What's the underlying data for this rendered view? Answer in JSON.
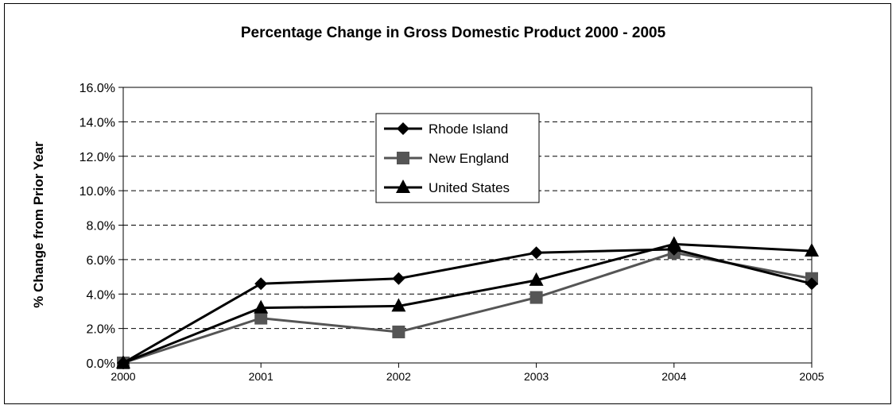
{
  "chart_data": {
    "type": "line",
    "title": "Percentage Change in Gross Domestic Product 2000 - 2005",
    "xlabel": "",
    "ylabel": "% Change from Prior Year",
    "categories": [
      "2000",
      "2001",
      "2002",
      "2003",
      "2004",
      "2005"
    ],
    "ylim": [
      0,
      16
    ],
    "yticks": [
      0,
      2,
      4,
      6,
      8,
      10,
      12,
      14,
      16
    ],
    "ytick_labels": [
      "0.0%",
      "2.0%",
      "4.0%",
      "6.0%",
      "8.0%",
      "10.0%",
      "12.0%",
      "14.0%",
      "16.0%"
    ],
    "grid": "horizontal dashed",
    "legend_position": "top-center",
    "series": [
      {
        "name": "Rhode Island",
        "marker": "diamond",
        "color": "#000000",
        "values": [
          0.0,
          4.6,
          4.9,
          6.4,
          6.6,
          4.6
        ]
      },
      {
        "name": "New England",
        "marker": "square",
        "color": "#555555",
        "values": [
          0.0,
          2.6,
          1.8,
          3.8,
          6.4,
          4.9
        ]
      },
      {
        "name": "United States",
        "marker": "triangle",
        "color": "#000000",
        "values": [
          0.0,
          3.2,
          3.3,
          4.8,
          6.9,
          6.5
        ]
      }
    ]
  }
}
